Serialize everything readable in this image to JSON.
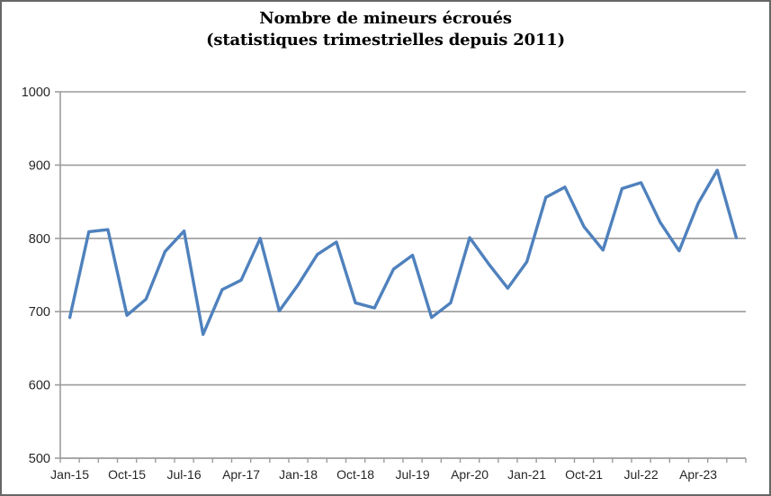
{
  "chart": {
    "title_line1": "Nombre de mineurs écroués",
    "title_line2": "(statistiques trimestrielles depuis 2011)"
  },
  "chart_data": {
    "type": "line",
    "title": "Nombre de mineurs écroués (statistiques trimestrielles depuis 2011)",
    "categories": [
      "Jan-15",
      "Apr-15",
      "Jul-15",
      "Oct-15",
      "Jan-16",
      "Apr-16",
      "Jul-16",
      "Oct-16",
      "Jan-17",
      "Apr-17",
      "Jul-17",
      "Oct-17",
      "Jan-18",
      "Apr-18",
      "Jul-18",
      "Oct-18",
      "Jan-19",
      "Apr-19",
      "Jul-19",
      "Oct-19",
      "Jan-20",
      "Apr-20",
      "Jul-20",
      "Oct-20",
      "Jan-21",
      "Apr-21",
      "Jul-21",
      "Oct-21",
      "Jan-22",
      "Apr-22",
      "Jul-22",
      "Oct-22",
      "Jan-23",
      "Apr-23",
      "Jul-23",
      "Oct-23"
    ],
    "values": [
      692,
      809,
      812,
      695,
      717,
      782,
      810,
      669,
      730,
      743,
      800,
      701,
      737,
      778,
      795,
      712,
      705,
      758,
      777,
      692,
      712,
      801,
      765,
      732,
      768,
      856,
      870,
      816,
      784,
      868,
      876,
      822,
      783,
      848,
      893,
      801
    ],
    "visible_x_tick_labels": [
      "Jan-15",
      "Oct-15",
      "Jul-16",
      "Apr-17",
      "Jan-18",
      "Oct-18",
      "Jul-19",
      "Apr-20",
      "Jan-21",
      "Oct-21",
      "Jul-22",
      "Apr-23"
    ],
    "x_label_every": 3,
    "ylim": [
      500,
      1000
    ],
    "y_tick_step": 100,
    "y_tick_labels": [
      "500",
      "600",
      "700",
      "800",
      "900",
      "1000"
    ],
    "grid": true,
    "legend_position": "none",
    "series_name": "Nombre de mineurs écroués",
    "colors": {
      "line": "#4F81BD",
      "gridline": "#9C9C9C",
      "axis": "#9C9C9C",
      "tick_text": "#262626",
      "title_text": "#000000",
      "frame_border": "#666666",
      "background": "#FFFFFF"
    }
  }
}
